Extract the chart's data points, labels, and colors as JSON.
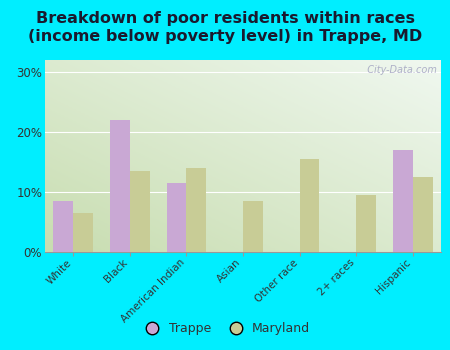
{
  "title": "Breakdown of poor residents within races\n(income below poverty level) in Trappe, MD",
  "categories": [
    "White",
    "Black",
    "American Indian",
    "Asian",
    "Other race",
    "2+ races",
    "Hispanic"
  ],
  "trappe_values": [
    8.5,
    22.0,
    11.5,
    0,
    0,
    0,
    17.0
  ],
  "maryland_values": [
    6.5,
    13.5,
    14.0,
    8.5,
    15.5,
    9.5,
    12.5
  ],
  "trappe_color": "#c9a8d4",
  "maryland_color": "#c8cc96",
  "ylim": [
    0,
    32
  ],
  "yticks": [
    0,
    10,
    20,
    30
  ],
  "ytick_labels": [
    "0%",
    "10%",
    "20%",
    "30%"
  ],
  "bar_width": 0.35,
  "outer_bg": "#00eeff",
  "title_fontsize": 11.5,
  "title_color": "#1a1a2e",
  "legend_labels": [
    "Trappe",
    "Maryland"
  ],
  "watermark": "  City-Data.com",
  "bg_left_bottom": "#c8ddb0",
  "bg_right_top": "#f0f8f0"
}
